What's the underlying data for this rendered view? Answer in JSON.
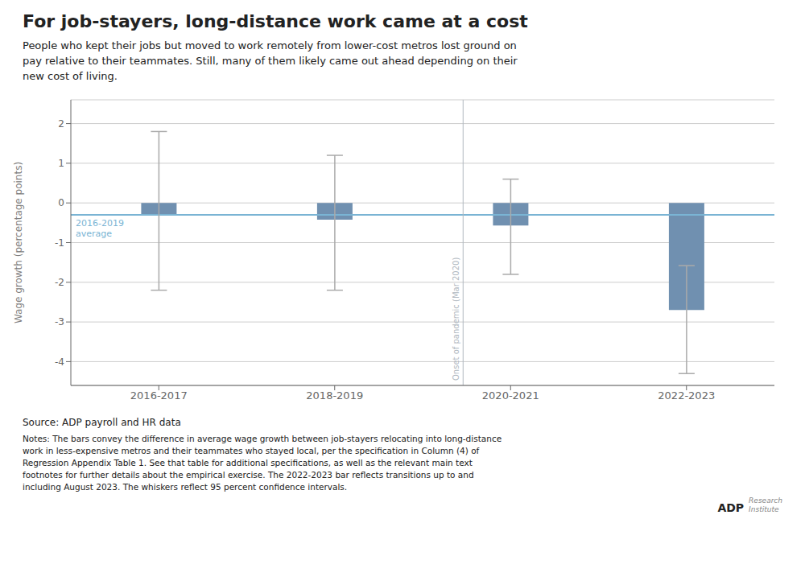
{
  "chart_data": {
    "type": "bar",
    "title": "For job-stayers, long-distance work came at a cost",
    "subtitle": "People who kept their jobs but moved to work remotely from lower-cost metros lost ground on\npay relative to their teammates. Still, many of them likely came out ahead depending on their\nnew cost of living.",
    "ylabel": "Wage growth (percentage points)",
    "categories": [
      "2016-2017",
      "2018-2019",
      "2020-2021",
      "2022-2023"
    ],
    "values": [
      -0.3,
      -0.42,
      -0.57,
      -2.7
    ],
    "error_bars": {
      "lower": [
        -2.2,
        -2.2,
        -1.8,
        -4.3
      ],
      "upper": [
        1.8,
        1.2,
        0.6,
        -1.58
      ],
      "color": "#aaaaaa"
    },
    "color": "#7090b0",
    "ylim": [
      -4.6,
      2.6
    ],
    "yticks": [
      -4,
      -3,
      -2,
      -1,
      0,
      1,
      2
    ],
    "grid": true,
    "reference_line": {
      "y": -0.3,
      "label": "2016-2019\naverage",
      "color": "#7ab4d4"
    },
    "vertical_line": {
      "x": 1.73,
      "label": "Onset of pandemic (Mar 2020)",
      "color": "#b0b8c0"
    },
    "source": "Source: ADP payroll and HR data",
    "notes": "Notes: The bars convey the difference in average wage growth between job-stayers relocating into long-distance\nwork in less-expensive metros and their teammates who stayed local, per the specification in Column (4) of\nRegression Appendix Table 1. See that table for additional specifications, as well as the relevant main text\nfootnotes for further details about the empirical exercise. The 2022-2023 bar reflects transitions up to and\nincluding August 2023. The whiskers reflect 95 percent confidence intervals.",
    "logo": "ADP",
    "logo_subtext": "Research\nInstitute"
  }
}
